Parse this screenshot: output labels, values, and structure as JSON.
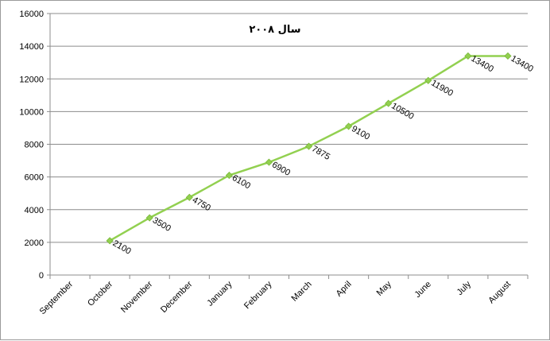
{
  "chart_data": {
    "type": "line",
    "title": "سال ۲۰۰۸",
    "xlabel": "",
    "ylabel": "",
    "categories": [
      "September",
      "October",
      "November",
      "December",
      "January",
      "February",
      "March",
      "April",
      "May",
      "June",
      "July",
      "August"
    ],
    "series": [
      {
        "values": [
          null,
          2100,
          3500,
          4750,
          6100,
          6900,
          7875,
          9100,
          10500,
          11900,
          13400,
          13400
        ],
        "color": "#92d050"
      }
    ],
    "y_ticks": [
      "0",
      "2000",
      "4000",
      "6000",
      "8000",
      "10000",
      "12000",
      "14000",
      "16000"
    ],
    "ylim": [
      0,
      16000
    ],
    "grid": true,
    "legend": "none"
  }
}
